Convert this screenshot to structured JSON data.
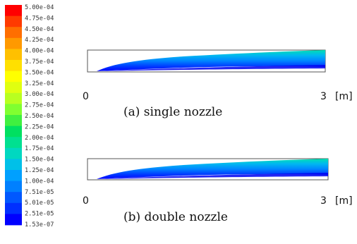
{
  "colorbar": {
    "labels": [
      "5.00e-04",
      "4.75e-04",
      "4.50e-04",
      "4.25e-04",
      "4.00e-04",
      "3.75e-04",
      "3.50e-04",
      "3.25e-04",
      "3.00e-04",
      "2.75e-04",
      "2.50e-04",
      "2.25e-04",
      "2.00e-04",
      "1.75e-04",
      "1.50e-04",
      "1.25e-04",
      "1.00e-04",
      "7.51e-05",
      "5.01e-05",
      "2.51e-05",
      "1.53e-07"
    ],
    "colors": [
      "#ff0000",
      "#ff3a00",
      "#ff6e00",
      "#ff9900",
      "#ffc000",
      "#ffe000",
      "#ffff00",
      "#e0ff10",
      "#b8ff20",
      "#80ff30",
      "#40f040",
      "#00e060",
      "#00e090",
      "#00d8c0",
      "#00c0e8",
      "#00a0ff",
      "#0080ff",
      "#0058ff",
      "#0030ff",
      "#0000ff"
    ]
  },
  "panels": [
    {
      "x_start_label": "0",
      "x_end_label": "3",
      "unit": "[m]",
      "caption": "(a) single nozzle"
    },
    {
      "x_start_label": "0",
      "x_end_label": "3",
      "unit": "[m]",
      "caption": "(b) double nozzle"
    }
  ],
  "spray_colors": [
    "#0000ff",
    "#0030ff",
    "#0058ff",
    "#0080ff",
    "#00a0ff",
    "#00c0e8",
    "#00d8c0"
  ]
}
